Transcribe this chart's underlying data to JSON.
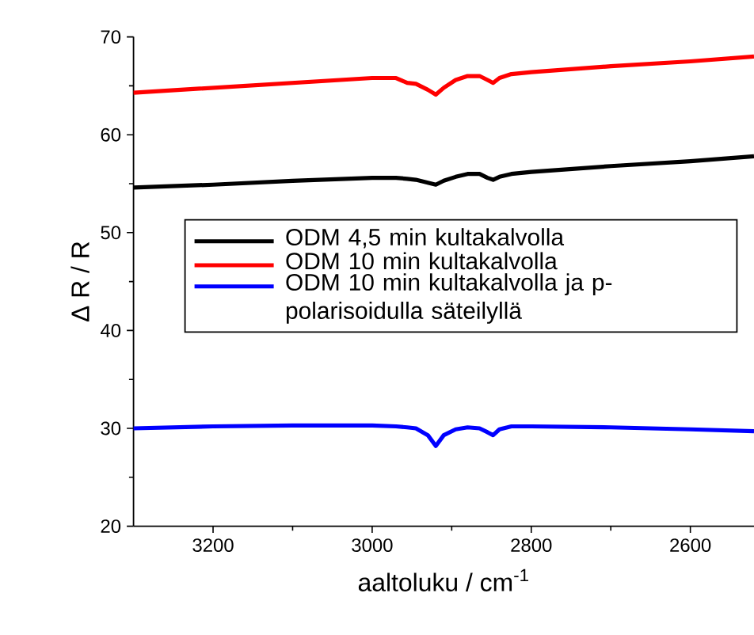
{
  "chart_data": {
    "type": "line",
    "xlabel": "aaltoluku / cm$^{-1}$",
    "ylabel": "Δ R / R",
    "xlim": [
      3300,
      2520
    ],
    "ylim": [
      20,
      70
    ],
    "xticks": [
      3200,
      3000,
      2800,
      2600
    ],
    "yticks": [
      20,
      30,
      40,
      50,
      60,
      70
    ],
    "legend": "left",
    "grid": false,
    "marker": "none",
    "line_style": "solid",
    "x": [
      3300,
      3200,
      3100,
      3000,
      2970,
      2956,
      2945,
      2930,
      2920,
      2910,
      2895,
      2880,
      2865,
      2855,
      2848,
      2840,
      2825,
      2800,
      2700,
      2600,
      2520
    ],
    "series": [
      {
        "name": "ODM 4,5 min kultakalvolla",
        "color": "#000000",
        "values": [
          54.6,
          54.9,
          55.3,
          55.6,
          55.6,
          55.5,
          55.4,
          55.1,
          54.9,
          55.3,
          55.7,
          56.0,
          56.0,
          55.6,
          55.4,
          55.7,
          56.0,
          56.2,
          56.8,
          57.3,
          57.8
        ]
      },
      {
        "name": "ODM 10 min kultakalvolla",
        "color": "#ff0000",
        "values": [
          64.3,
          64.8,
          65.3,
          65.8,
          65.8,
          65.3,
          65.2,
          64.6,
          64.1,
          64.8,
          65.6,
          66.0,
          66.0,
          65.6,
          65.3,
          65.8,
          66.2,
          66.4,
          67.0,
          67.5,
          68.0
        ]
      },
      {
        "name": "ODM 10 min kultakalvolla ja p-polarisoidulla säteilyllä",
        "color": "#0000ff",
        "values": [
          30.0,
          30.2,
          30.3,
          30.3,
          30.2,
          30.1,
          30.0,
          29.3,
          28.2,
          29.3,
          29.9,
          30.1,
          30.0,
          29.6,
          29.3,
          29.9,
          30.2,
          30.2,
          30.1,
          29.9,
          29.7
        ]
      }
    ]
  }
}
